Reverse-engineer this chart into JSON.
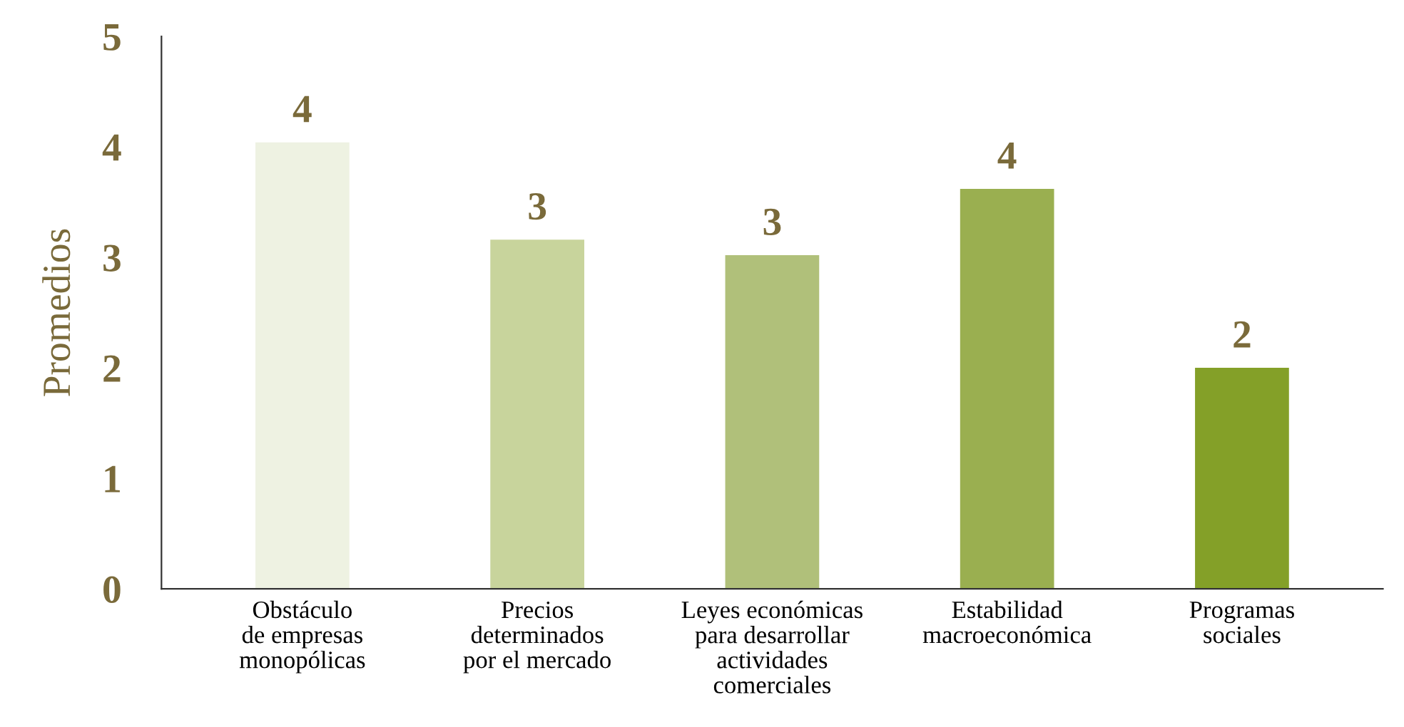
{
  "chart_data": {
    "type": "bar",
    "ylabel": "Promedios",
    "categories": [
      "Obstáculo\nde empresas\nmonopólicas",
      "Precios\ndeterminados\npor el mercado",
      "Leyes económicas\npara desarrollar\nactividades\ncomerciales",
      "Estabilidad\nmacroeconómica",
      "Programas\nsociales"
    ],
    "values": [
      4.04,
      3.16,
      3.02,
      3.62,
      2.0
    ],
    "colors": [
      "#eef2e2",
      "#c8d49c",
      "#b0c07a",
      "#9aaf50",
      "#84a028"
    ],
    "value_labels": [
      "4",
      "3",
      "3",
      "4",
      "2"
    ],
    "ylim": [
      0,
      5
    ],
    "yticks": [
      0,
      1,
      2,
      3,
      4,
      5
    ],
    "grid": false,
    "legend": false
  }
}
